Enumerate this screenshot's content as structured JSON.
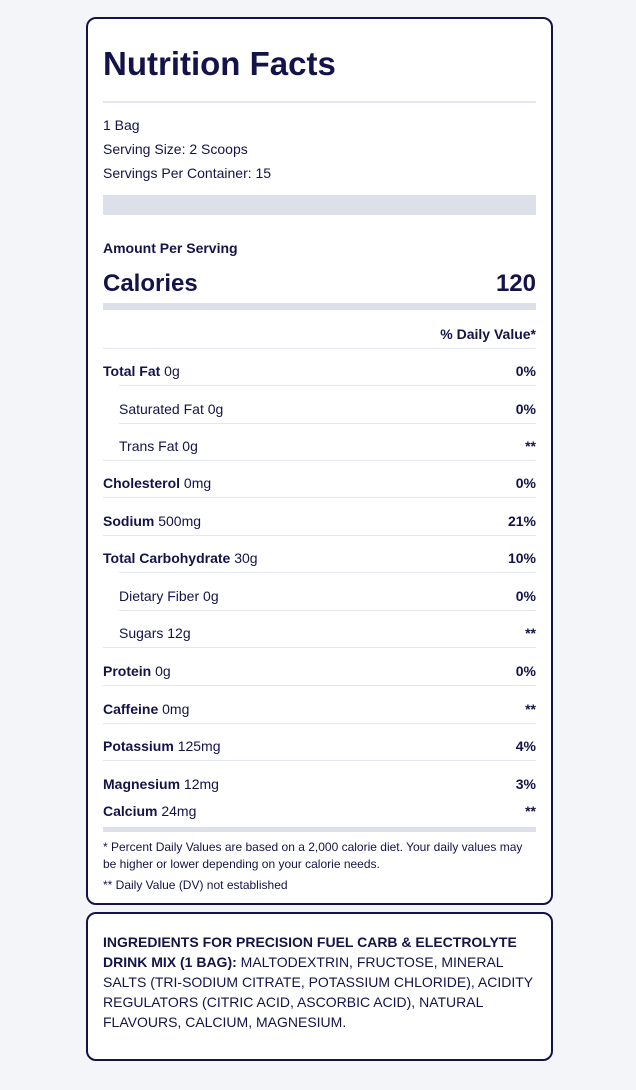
{
  "label": {
    "title": "Nutrition Facts",
    "package": "1 Bag",
    "serving_size": "Serving Size: 2 Scoops",
    "servings_per_container": "Servings Per Container: 15",
    "amount_per_serving": "Amount Per Serving",
    "calories_label": "Calories",
    "calories_value": "120",
    "daily_value_header": "% Daily Value*",
    "nutrients": [
      {
        "name": "Total Fat",
        "amount": " 0g",
        "dv": "0%",
        "indent": false
      },
      {
        "name": "Saturated Fat",
        "amount": " 0g",
        "dv": "0%",
        "indent": true
      },
      {
        "name": "Trans Fat",
        "amount": " 0g",
        "dv": "**",
        "indent": true
      },
      {
        "name": "Cholesterol",
        "amount": " 0mg",
        "dv": "0%",
        "indent": false
      },
      {
        "name": "Sodium",
        "amount": " 500mg",
        "dv": "21%",
        "indent": false
      },
      {
        "name": "Total Carbohydrate",
        "amount": " 30g",
        "dv": "10%",
        "indent": false
      },
      {
        "name": "Dietary Fiber",
        "amount": " 0g",
        "dv": "0%",
        "indent": true
      },
      {
        "name": "Sugars",
        "amount": " 12g",
        "dv": "**",
        "indent": true
      },
      {
        "name": "Protein",
        "amount": " 0g",
        "dv": "0%",
        "indent": false
      },
      {
        "name": "Caffeine",
        "amount": " 0mg",
        "dv": "**",
        "indent": false
      },
      {
        "name": "Potassium",
        "amount": " 125mg",
        "dv": "4%",
        "indent": false
      },
      {
        "name": "Magnesium",
        "amount": " 12mg",
        "dv": "3%",
        "indent": false
      },
      {
        "name": "Calcium",
        "amount": " 24mg",
        "dv": "**",
        "indent": false
      }
    ],
    "footnote_dv": "* Percent Daily Values are based on a 2,000 calorie diet. Your daily values may be higher or lower depending on your calorie needs.",
    "footnote_not_established": "** Daily Value (DV) not established"
  },
  "ingredients": {
    "heading": "INGREDIENTS FOR PRECISION FUEL CARB & ELECTROLYTE DRINK MIX (1 BAG):",
    "text": " MALTODEXTRIN, FRUCTOSE, MINERAL SALTS (TRI-SODIUM CITRATE, POTASSIUM CHLORIDE), ACIDITY REGULATORS (CITRIC ACID, ASCORBIC ACID), NATURAL FLAVOURS, CALCIUM, MAGNESIUM."
  }
}
